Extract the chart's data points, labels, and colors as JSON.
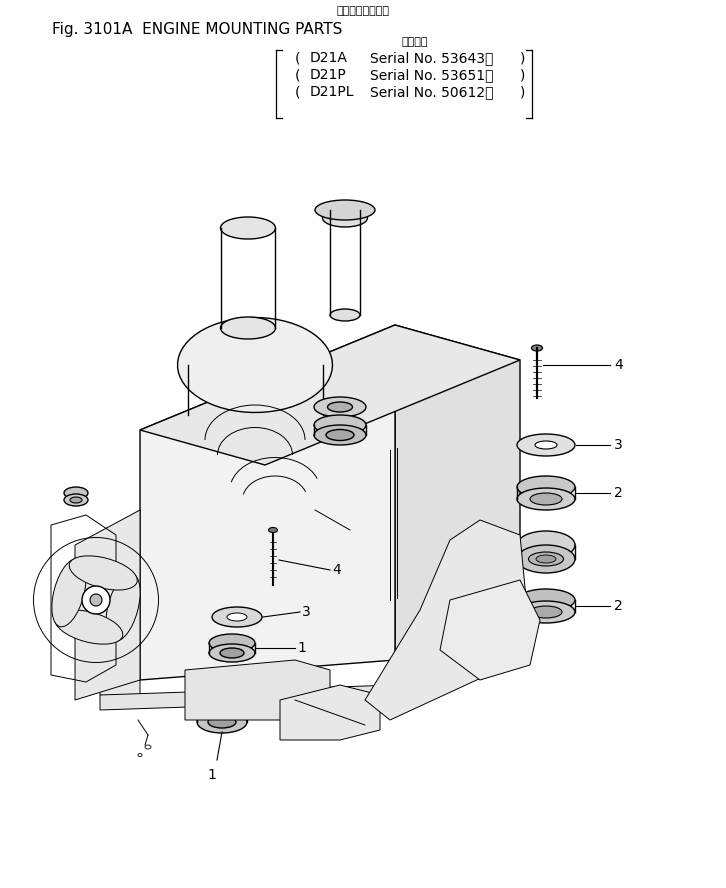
{
  "title_jp": "エンジン取付部品",
  "title_en": "Fig. 3101A  ENGINE MOUNTING PARTS",
  "app_header": "適用号機",
  "models": [
    {
      "name": "D21A",
      "serial": "Serial No. 53643～"
    },
    {
      "name": "D21P",
      "serial": "Serial No. 53651～"
    },
    {
      "name": "D21PL",
      "serial": "Serial No. 50612～"
    }
  ],
  "bg_color": "#ffffff",
  "lc": "#000000",
  "tc": "#000000",
  "fig_width": 7.26,
  "fig_height": 8.88,
  "dpi": 100
}
